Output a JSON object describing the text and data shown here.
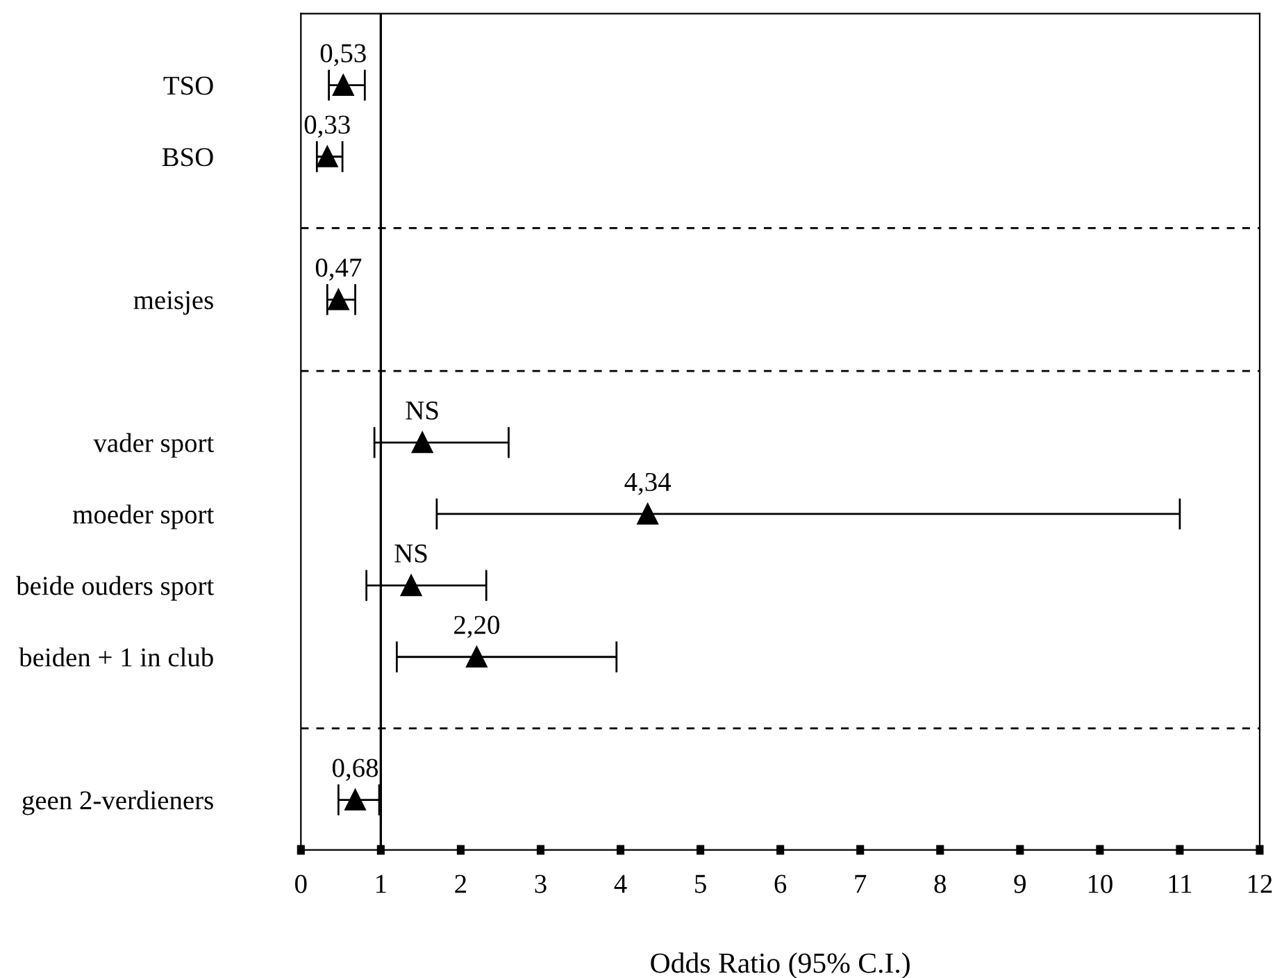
{
  "chart_data": {
    "type": "scatter",
    "orientation": "horizontal",
    "xlabel": "Odds Ratio (95% C.I.)",
    "categories": [
      "TSO",
      "BSO",
      null,
      "meisjes",
      null,
      "vader sport",
      "moeder sport",
      "beide ouders sport",
      "beiden + 1 in club",
      null,
      "geen 2-verdieners"
    ],
    "values": [
      0.53,
      0.33,
      null,
      0.47,
      null,
      1.52,
      4.34,
      1.38,
      2.2,
      null,
      0.68
    ],
    "errors": [
      [
        0.35,
        0.8
      ],
      [
        0.2,
        0.52
      ],
      null,
      [
        0.33,
        0.68
      ],
      null,
      [
        0.92,
        2.6
      ],
      [
        1.7,
        11.0
      ],
      [
        0.82,
        2.32
      ],
      [
        1.2,
        3.95
      ],
      null,
      [
        0.47,
        0.98
      ]
    ],
    "value_labels": [
      "0,53",
      "0,33",
      null,
      "0,47",
      null,
      "NS",
      "4,34",
      "NS",
      "2,20",
      null,
      "0,68"
    ],
    "color": "#000000",
    "marker": "triangle",
    "xlim": [
      0,
      12
    ],
    "xticks": [
      0,
      1,
      2,
      3,
      4,
      5,
      6,
      7,
      8,
      9,
      10,
      11,
      12
    ],
    "ref_lines": [
      {
        "axis": "x",
        "value": 1,
        "line_style": "solid"
      }
    ],
    "grid": false,
    "legend": false
  }
}
